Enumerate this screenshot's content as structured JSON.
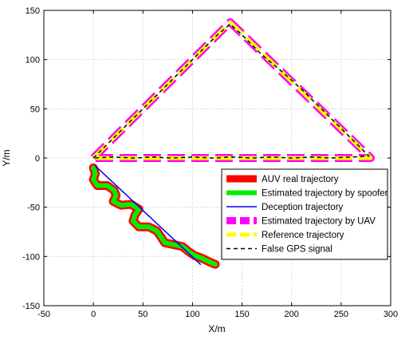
{
  "chart_data": {
    "type": "line",
    "xlabel": "X/m",
    "ylabel": "Y/m",
    "xlim": [
      -50,
      300
    ],
    "ylim": [
      -150,
      150
    ],
    "xticks": [
      "-50",
      "0",
      "50",
      "100",
      "150",
      "200",
      "250",
      "300"
    ],
    "yticks": [
      "150",
      "100",
      "50",
      "0",
      "-50",
      "-100",
      "-150"
    ],
    "grid": true,
    "legend_position": "bottom-right",
    "series": [
      {
        "name": "AUV real trajectory",
        "color": "#ff0000",
        "style": "thick-solid",
        "points": [
          [
            0,
            -10
          ],
          [
            2,
            -16
          ],
          [
            0,
            -22
          ],
          [
            4,
            -28
          ],
          [
            14,
            -28
          ],
          [
            21,
            -33
          ],
          [
            23,
            -38
          ],
          [
            20,
            -44
          ],
          [
            28,
            -48
          ],
          [
            38,
            -47
          ],
          [
            46,
            -52
          ],
          [
            42,
            -58
          ],
          [
            40,
            -64
          ],
          [
            46,
            -70
          ],
          [
            56,
            -70
          ],
          [
            64,
            -74
          ],
          [
            68,
            -80
          ],
          [
            72,
            -86
          ],
          [
            81,
            -88
          ],
          [
            90,
            -90
          ],
          [
            96,
            -95
          ],
          [
            102,
            -99
          ],
          [
            110,
            -102
          ],
          [
            118,
            -106
          ],
          [
            123,
            -108
          ]
        ]
      },
      {
        "name": "Estimated trajectory by spoofer",
        "color": "#00ee00",
        "style": "thick-solid",
        "points": [
          [
            0,
            -10
          ],
          [
            2,
            -16
          ],
          [
            0,
            -22
          ],
          [
            4,
            -28
          ],
          [
            14,
            -28
          ],
          [
            21,
            -33
          ],
          [
            23,
            -38
          ],
          [
            20,
            -44
          ],
          [
            28,
            -48
          ],
          [
            38,
            -47
          ],
          [
            46,
            -52
          ],
          [
            42,
            -58
          ],
          [
            40,
            -64
          ],
          [
            46,
            -70
          ],
          [
            56,
            -70
          ],
          [
            64,
            -74
          ],
          [
            68,
            -80
          ],
          [
            72,
            -86
          ],
          [
            81,
            -88
          ],
          [
            90,
            -90
          ],
          [
            96,
            -95
          ],
          [
            102,
            -99
          ],
          [
            110,
            -102
          ],
          [
            118,
            -106
          ],
          [
            123,
            -108
          ]
        ]
      },
      {
        "name": "Deception trajectory",
        "color": "#0000ff",
        "style": "solid",
        "points": [
          [
            2,
            -8
          ],
          [
            108,
            -108
          ]
        ]
      },
      {
        "name": "Estimated trajectory by UAV",
        "color": "#ff00ff",
        "style": "thick-dashed",
        "points": [
          [
            0,
            0
          ],
          [
            138,
            138
          ],
          [
            280,
            0
          ],
          [
            0,
            0
          ]
        ]
      },
      {
        "name": "Reference trajectory",
        "color": "#ffff00",
        "style": "thick-dashed",
        "points": [
          [
            0,
            0
          ],
          [
            138,
            138
          ],
          [
            280,
            0
          ],
          [
            0,
            0
          ]
        ]
      },
      {
        "name": "False GPS signal",
        "color": "#000000",
        "style": "dashed",
        "points": [
          [
            0,
            0
          ],
          [
            25,
            25
          ],
          [
            50,
            50
          ],
          [
            70,
            70
          ],
          [
            90,
            90
          ],
          [
            110,
            110
          ],
          [
            125,
            125
          ],
          [
            138,
            136
          ],
          [
            150,
            125
          ],
          [
            170,
            105
          ],
          [
            190,
            88
          ],
          [
            210,
            70
          ],
          [
            230,
            50
          ],
          [
            250,
            30
          ],
          [
            265,
            15
          ],
          [
            278,
            2
          ],
          [
            260,
            1
          ],
          [
            240,
            0
          ],
          [
            220,
            1
          ],
          [
            200,
            0
          ],
          [
            180,
            1
          ],
          [
            160,
            0
          ],
          [
            140,
            1
          ],
          [
            120,
            0
          ],
          [
            100,
            1
          ],
          [
            80,
            0
          ],
          [
            60,
            1
          ],
          [
            40,
            0
          ],
          [
            20,
            1
          ],
          [
            0,
            0
          ]
        ]
      }
    ]
  }
}
